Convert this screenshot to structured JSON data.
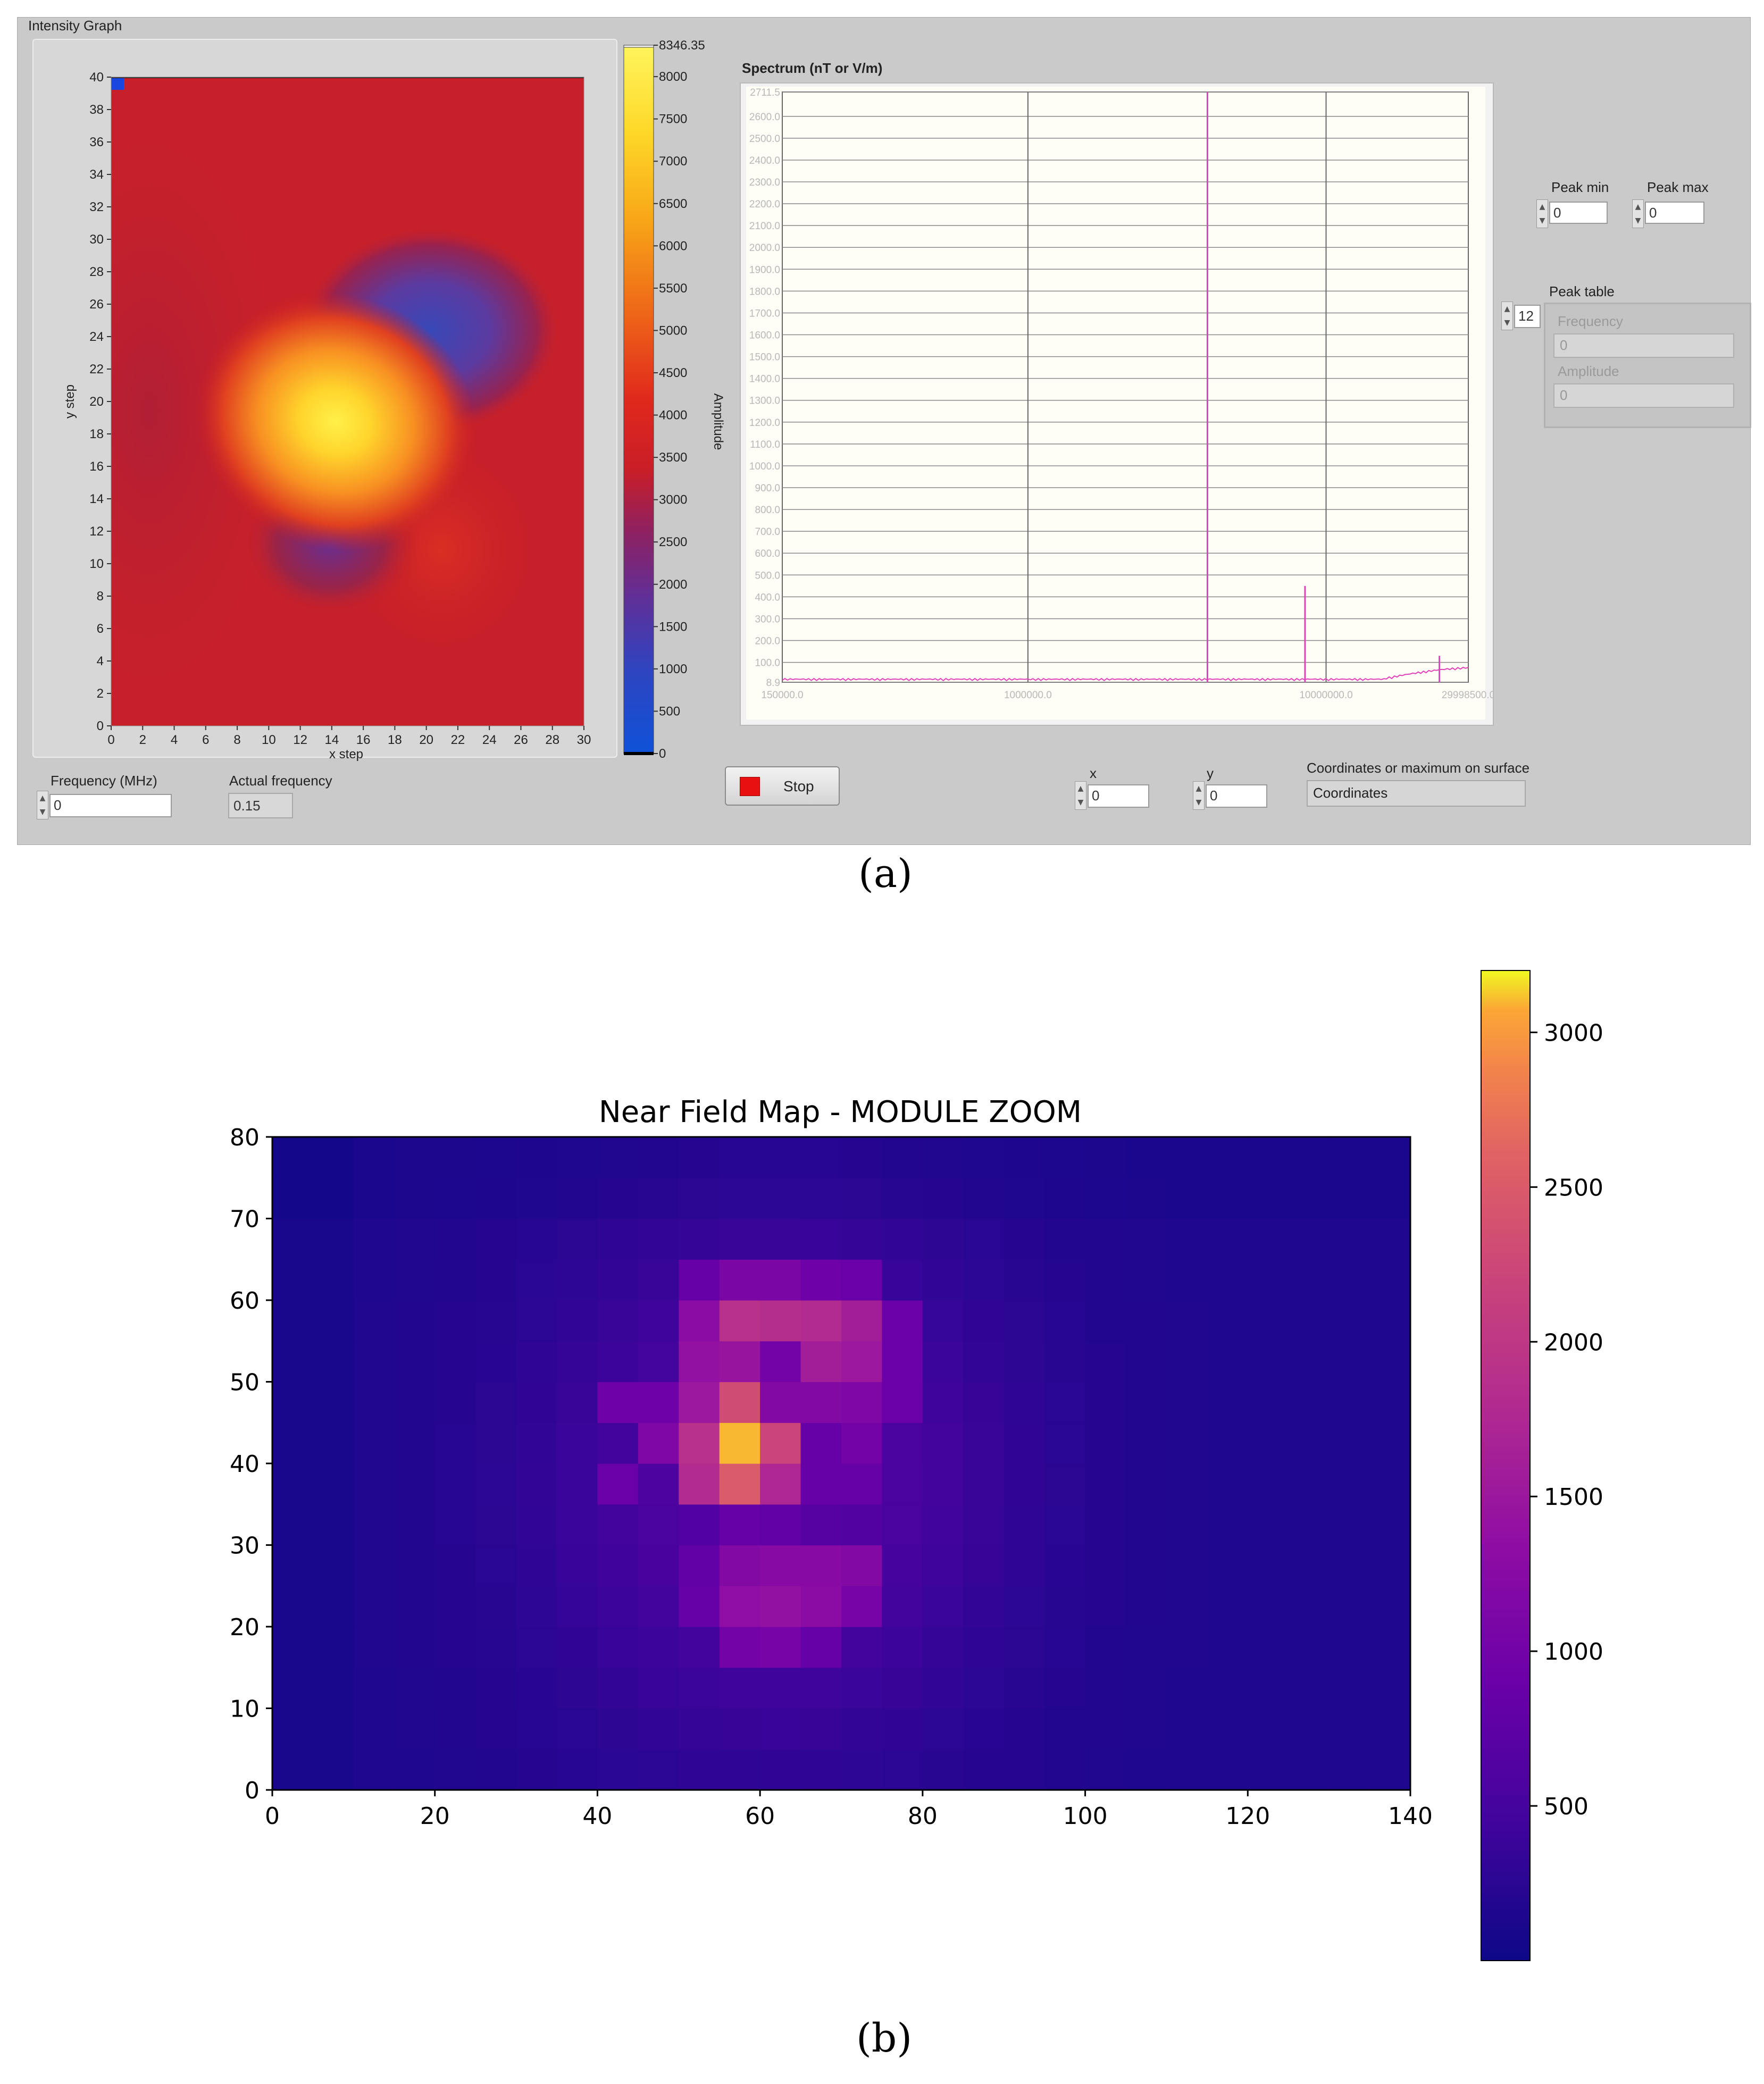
{
  "panel_a": {
    "intensity_title": "Intensity Graph",
    "intensity_graph": {
      "xlabel": "x step",
      "ylabel": "y step",
      "x_ticks": [
        "0",
        "2",
        "4",
        "6",
        "8",
        "10",
        "12",
        "14",
        "16",
        "18",
        "20",
        "22",
        "24",
        "26",
        "28",
        "30"
      ],
      "y_ticks": [
        "0",
        "2",
        "4",
        "6",
        "8",
        "10",
        "12",
        "14",
        "16",
        "18",
        "20",
        "22",
        "24",
        "26",
        "28",
        "30",
        "32",
        "34",
        "36",
        "38",
        "40"
      ],
      "colorbar_max_label": "8346.35",
      "colorbar_ticks": [
        "8000",
        "7500",
        "7000",
        "6500",
        "6000",
        "5500",
        "5000",
        "4500",
        "4000",
        "3500",
        "3000",
        "2500",
        "2000",
        "1500",
        "1000",
        "500",
        "0"
      ],
      "colorbar_label": "Amplitude"
    },
    "spectrum": {
      "title": "Spectrum (nT or V/m)",
      "y_ticks": [
        "2711.5",
        "2600.0",
        "2500.0",
        "2400.0",
        "2300.0",
        "2200.0",
        "2100.0",
        "2000.0",
        "1900.0",
        "1800.0",
        "1700.0",
        "1600.0",
        "1500.0",
        "1400.0",
        "1300.0",
        "1200.0",
        "1100.0",
        "1000.0",
        "900.0",
        "800.0",
        "700.0",
        "600.0",
        "500.0",
        "400.0",
        "300.0",
        "200.0",
        "100.0",
        "8.9"
      ],
      "x_ticks": [
        "150000.0",
        "1000000.0",
        "10000000.0",
        "29998500.0"
      ],
      "trace_color": "#e040b8"
    },
    "peak_min": {
      "label": "Peak min",
      "value": "0"
    },
    "peak_max": {
      "label": "Peak max",
      "value": "0"
    },
    "peak_table": {
      "label": "Peak table",
      "index": "12",
      "frequency_label": "Frequency",
      "frequency_value": "0",
      "amplitude_label": "Amplitude",
      "amplitude_value": "0"
    },
    "frequency": {
      "label": "Frequency (MHz)",
      "value": "0"
    },
    "actual_frequency": {
      "label": "Actual frequency",
      "value": "0.15"
    },
    "stop_button": "Stop",
    "x_field": {
      "label": "x",
      "value": "0"
    },
    "y_field": {
      "label": "y",
      "value": "0"
    },
    "coordinates": {
      "label": "Coordinates or maximum on surface",
      "value": "Coordinates"
    }
  },
  "caption_a": "(a)",
  "caption_b": "(b)",
  "chart_data": [
    {
      "type": "heatmap",
      "title": "",
      "xlabel": "x step",
      "ylabel": "y step",
      "xlim": [
        0,
        30
      ],
      "ylim": [
        0,
        40
      ],
      "colorbar": {
        "label": "Amplitude",
        "range": [
          0,
          8346.35
        ],
        "colormap": "blue-red-yellow"
      },
      "background_value": 2900,
      "features": [
        {
          "kind": "max",
          "x": 15,
          "y": 16.5,
          "value": 8000
        },
        {
          "kind": "min",
          "x": 21,
          "y": 23,
          "value": 1000
        },
        {
          "kind": "min",
          "x": 13.5,
          "y": 10,
          "value": 2000
        },
        {
          "kind": "secondary",
          "x": 23,
          "y": 10.5,
          "value": 3400
        }
      ]
    },
    {
      "type": "line",
      "title": "Spectrum (nT or V/m)",
      "x_scale": "log",
      "xlim": [
        150000.0,
        29998500.0
      ],
      "ylim": [
        8.9,
        2711.5
      ],
      "peaks": [
        {
          "x": 4000000,
          "y": 2711.5
        },
        {
          "x": 8500000,
          "y": 450
        },
        {
          "x": 24000000,
          "y": 130
        }
      ]
    },
    {
      "type": "heatmap",
      "title": "Near Field Map - MODULE ZOOM",
      "xlim": [
        0,
        140
      ],
      "ylim": [
        0,
        80
      ],
      "x_ticks": [
        "0",
        "20",
        "40",
        "60",
        "80",
        "100",
        "120",
        "140"
      ],
      "y_ticks": [
        "0",
        "10",
        "20",
        "30",
        "40",
        "50",
        "60",
        "70",
        "80"
      ],
      "colorbar": {
        "colormap": "plasma",
        "range": [
          0,
          3200
        ],
        "ticks": [
          "500",
          "1000",
          "1500",
          "2000",
          "2500",
          "3000"
        ]
      },
      "grid": {
        "cols": 28,
        "rows": 16,
        "cell": [
          5,
          5
        ]
      },
      "hot_cells": [
        {
          "x": 57.5,
          "y": 42.5,
          "value": 3100
        },
        {
          "x": 57.5,
          "y": 37.5,
          "value": 2500
        },
        {
          "x": 57.5,
          "y": 47.5,
          "value": 2300
        },
        {
          "x": 62.5,
          "y": 42.5,
          "value": 2200
        },
        {
          "x": 52.5,
          "y": 42.5,
          "value": 1900
        },
        {
          "x": 57.5,
          "y": 57.5,
          "value": 1900
        },
        {
          "x": 62.5,
          "y": 57.5,
          "value": 1850
        },
        {
          "x": 67.5,
          "y": 57.5,
          "value": 1800
        },
        {
          "x": 52.5,
          "y": 37.5,
          "value": 1800
        },
        {
          "x": 62.5,
          "y": 37.5,
          "value": 1750
        },
        {
          "x": 72.5,
          "y": 57.5,
          "value": 1600
        },
        {
          "x": 67.5,
          "y": 52.5,
          "value": 1600
        },
        {
          "x": 72.5,
          "y": 52.5,
          "value": 1500
        },
        {
          "x": 52.5,
          "y": 47.5,
          "value": 1500
        },
        {
          "x": 57.5,
          "y": 52.5,
          "value": 1450
        },
        {
          "x": 52.5,
          "y": 52.5,
          "value": 1400
        },
        {
          "x": 62.5,
          "y": 22.5,
          "value": 1400
        },
        {
          "x": 57.5,
          "y": 22.5,
          "value": 1350
        },
        {
          "x": 52.5,
          "y": 57.5,
          "value": 1300
        },
        {
          "x": 67.5,
          "y": 22.5,
          "value": 1300
        },
        {
          "x": 62.5,
          "y": 27.5,
          "value": 1250
        },
        {
          "x": 67.5,
          "y": 27.5,
          "value": 1250
        },
        {
          "x": 72.5,
          "y": 27.5,
          "value": 1200
        },
        {
          "x": 57.5,
          "y": 27.5,
          "value": 1200
        },
        {
          "x": 62.5,
          "y": 47.5,
          "value": 1200
        },
        {
          "x": 67.5,
          "y": 47.5,
          "value": 1200
        },
        {
          "x": 47.5,
          "y": 42.5,
          "value": 1150
        },
        {
          "x": 72.5,
          "y": 47.5,
          "value": 1150
        },
        {
          "x": 57.5,
          "y": 62.5,
          "value": 1100
        },
        {
          "x": 62.5,
          "y": 62.5,
          "value": 1100
        },
        {
          "x": 72.5,
          "y": 22.5,
          "value": 1050
        },
        {
          "x": 62.5,
          "y": 17.5,
          "value": 1050
        },
        {
          "x": 62.5,
          "y": 52.5,
          "value": 1000
        },
        {
          "x": 72.5,
          "y": 42.5,
          "value": 1000
        },
        {
          "x": 57.5,
          "y": 17.5,
          "value": 1000
        },
        {
          "x": 42.5,
          "y": 47.5,
          "value": 950
        },
        {
          "x": 47.5,
          "y": 47.5,
          "value": 950
        },
        {
          "x": 67.5,
          "y": 62.5,
          "value": 950
        },
        {
          "x": 72.5,
          "y": 62.5,
          "value": 900
        },
        {
          "x": 77.5,
          "y": 52.5,
          "value": 900
        },
        {
          "x": 77.5,
          "y": 57.5,
          "value": 900
        },
        {
          "x": 77.5,
          "y": 47.5,
          "value": 900
        },
        {
          "x": 42.5,
          "y": 37.5,
          "value": 900
        },
        {
          "x": 67.5,
          "y": 42.5,
          "value": 850
        },
        {
          "x": 67.5,
          "y": 37.5,
          "value": 850
        },
        {
          "x": 72.5,
          "y": 37.5,
          "value": 850
        },
        {
          "x": 67.5,
          "y": 17.5,
          "value": 850
        },
        {
          "x": 52.5,
          "y": 62.5,
          "value": 850
        },
        {
          "x": 52.5,
          "y": 22.5,
          "value": 850
        },
        {
          "x": 57.5,
          "y": 32.5,
          "value": 850
        },
        {
          "x": 62.5,
          "y": 32.5,
          "value": 800
        },
        {
          "x": 52.5,
          "y": 27.5,
          "value": 800
        }
      ]
    }
  ]
}
